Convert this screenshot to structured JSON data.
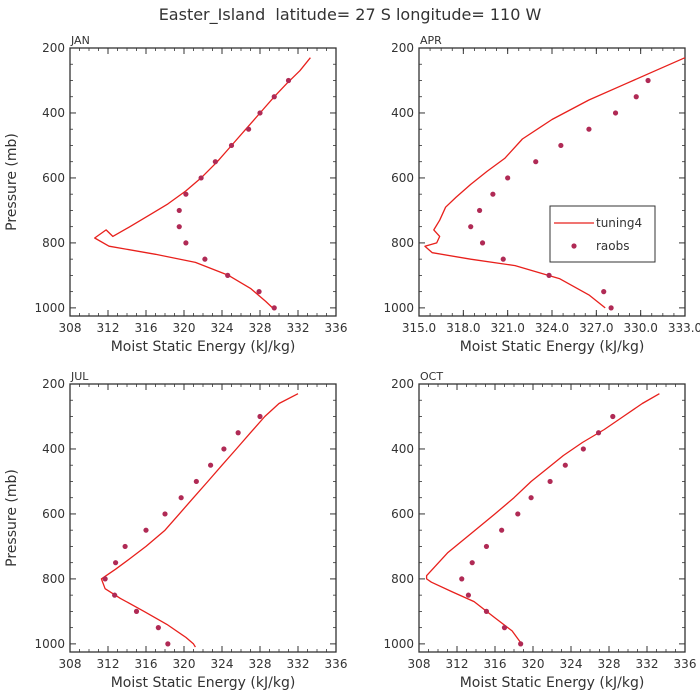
{
  "title": "Easter_Island  latitude= 27 S longitude= 110 W",
  "legend": {
    "line_label": "tuning4",
    "marker_label": "raobs"
  },
  "colors": {
    "line": "#e8201c",
    "marker": "#b02a55",
    "axis": "#333333"
  },
  "chart_data": [
    {
      "type": "line",
      "panel": "JAN",
      "xlabel": "Moist Static Energy (kJ/kg)",
      "ylabel": "Pressure (mb)",
      "xlim": [
        308,
        336
      ],
      "ylim": [
        1025,
        200
      ],
      "xticks": [
        "308",
        "312",
        "316",
        "320",
        "324",
        "328",
        "332",
        "336"
      ],
      "yticks": [
        "200",
        "400",
        "600",
        "800",
        "1000"
      ],
      "series": [
        {
          "name": "tuning4",
          "style": "line",
          "x": [
            333.3,
            332.2,
            330.8,
            329.5,
            328.0,
            326.5,
            325.0,
            323.5,
            321.8,
            320.2,
            318.3,
            316.6,
            314.3,
            312.5,
            311.8,
            310.6,
            312.1,
            317.0,
            321.2,
            324.7,
            327.0,
            328.6,
            329.5
          ],
          "y": [
            230,
            270,
            310,
            350,
            400,
            450,
            500,
            550,
            600,
            640,
            680,
            710,
            750,
            780,
            760,
            785,
            810,
            835,
            860,
            900,
            940,
            980,
            1005
          ]
        },
        {
          "name": "raobs",
          "style": "marker",
          "x": [
            331.0,
            329.5,
            328.0,
            326.8,
            325.0,
            323.3,
            321.8,
            320.2,
            319.5,
            319.5,
            320.2,
            322.2,
            324.6,
            327.9,
            329.5
          ],
          "y": [
            300,
            350,
            400,
            450,
            500,
            550,
            600,
            650,
            700,
            750,
            800,
            850,
            900,
            950,
            1000
          ]
        }
      ]
    },
    {
      "type": "line",
      "panel": "APR",
      "xlabel": "Moist Static Energy (kJ/kg)",
      "ylabel": "",
      "xlim": [
        315,
        333
      ],
      "ylim": [
        1025,
        200
      ],
      "xticks": [
        "315.0",
        "318.0",
        "321.0",
        "324.0",
        "327.0",
        "330.0",
        "333.0"
      ],
      "yticks": [
        "200",
        "400",
        "600",
        "800",
        "1000"
      ],
      "series": [
        {
          "name": "tuning4",
          "style": "line",
          "x": [
            333.0,
            331.0,
            329.0,
            326.5,
            324.0,
            322.0,
            320.8,
            319.6,
            318.5,
            317.5,
            316.8,
            316.4,
            316.0,
            316.4,
            316.2,
            315.4,
            315.9,
            318.5,
            321.5,
            324.5,
            326.5,
            327.6
          ],
          "y": [
            230,
            270,
            310,
            360,
            420,
            480,
            540,
            580,
            620,
            660,
            690,
            730,
            760,
            780,
            800,
            810,
            830,
            850,
            870,
            910,
            960,
            1000
          ]
        },
        {
          "name": "raobs",
          "style": "marker",
          "x": [
            330.5,
            329.7,
            328.3,
            326.5,
            324.6,
            322.9,
            321.0,
            320.0,
            319.1,
            318.5,
            319.3,
            320.7,
            323.8,
            327.5,
            328.0
          ],
          "y": [
            300,
            350,
            400,
            450,
            500,
            550,
            600,
            650,
            700,
            750,
            800,
            850,
            900,
            950,
            1000
          ]
        }
      ]
    },
    {
      "type": "line",
      "panel": "JUL",
      "xlabel": "Moist Static Energy (kJ/kg)",
      "ylabel": "Pressure (mb)",
      "xlim": [
        308,
        336
      ],
      "ylim": [
        1025,
        200
      ],
      "xticks": [
        "308",
        "312",
        "316",
        "320",
        "324",
        "328",
        "332",
        "336"
      ],
      "yticks": [
        "200",
        "400",
        "600",
        "800",
        "1000"
      ],
      "series": [
        {
          "name": "tuning4",
          "style": "line",
          "x": [
            332.0,
            330.0,
            328.5,
            327.0,
            325.5,
            324.0,
            322.5,
            321.0,
            319.5,
            318.0,
            316.0,
            314.2,
            312.8,
            311.8,
            311.3,
            311.7,
            313.3,
            315.8,
            318.2,
            320.2,
            321.0,
            321.2
          ],
          "y": [
            230,
            260,
            300,
            350,
            400,
            450,
            500,
            550,
            600,
            650,
            700,
            740,
            770,
            790,
            800,
            830,
            860,
            900,
            940,
            980,
            1000,
            1010
          ]
        },
        {
          "name": "raobs",
          "style": "marker",
          "x": [
            328.0,
            325.7,
            324.2,
            322.8,
            321.3,
            319.7,
            318.0,
            316.0,
            313.8,
            312.8,
            311.7,
            312.7,
            315.0,
            317.3,
            318.3
          ],
          "y": [
            300,
            350,
            400,
            450,
            500,
            550,
            600,
            650,
            700,
            750,
            800,
            850,
            900,
            950,
            1000
          ]
        }
      ]
    },
    {
      "type": "line",
      "panel": "OCT",
      "xlabel": "Moist Static Energy (kJ/kg)",
      "ylabel": "",
      "xlim": [
        308,
        336
      ],
      "ylim": [
        1025,
        200
      ],
      "xticks": [
        "308",
        "312",
        "316",
        "320",
        "324",
        "328",
        "332",
        "336"
      ],
      "yticks": [
        "200",
        "400",
        "600",
        "800",
        "1000"
      ],
      "series": [
        {
          "name": "tuning4",
          "style": "line",
          "x": [
            333.3,
            331.5,
            329.5,
            327.5,
            325.2,
            323.2,
            321.5,
            319.8,
            318.0,
            316.0,
            313.5,
            311.0,
            308.8,
            308.8,
            309.3,
            311.5,
            313.8,
            316.0,
            317.8,
            318.8
          ],
          "y": [
            230,
            260,
            300,
            340,
            380,
            420,
            460,
            500,
            550,
            600,
            660,
            720,
            790,
            800,
            810,
            840,
            870,
            920,
            960,
            1000
          ]
        },
        {
          "name": "raobs",
          "style": "marker",
          "x": [
            328.4,
            326.9,
            325.3,
            323.4,
            321.8,
            319.8,
            318.4,
            316.7,
            315.1,
            313.6,
            312.5,
            313.2,
            315.1,
            317.0,
            318.7
          ],
          "y": [
            300,
            350,
            400,
            450,
            500,
            550,
            600,
            650,
            700,
            750,
            800,
            850,
            900,
            950,
            1000
          ]
        }
      ]
    }
  ]
}
